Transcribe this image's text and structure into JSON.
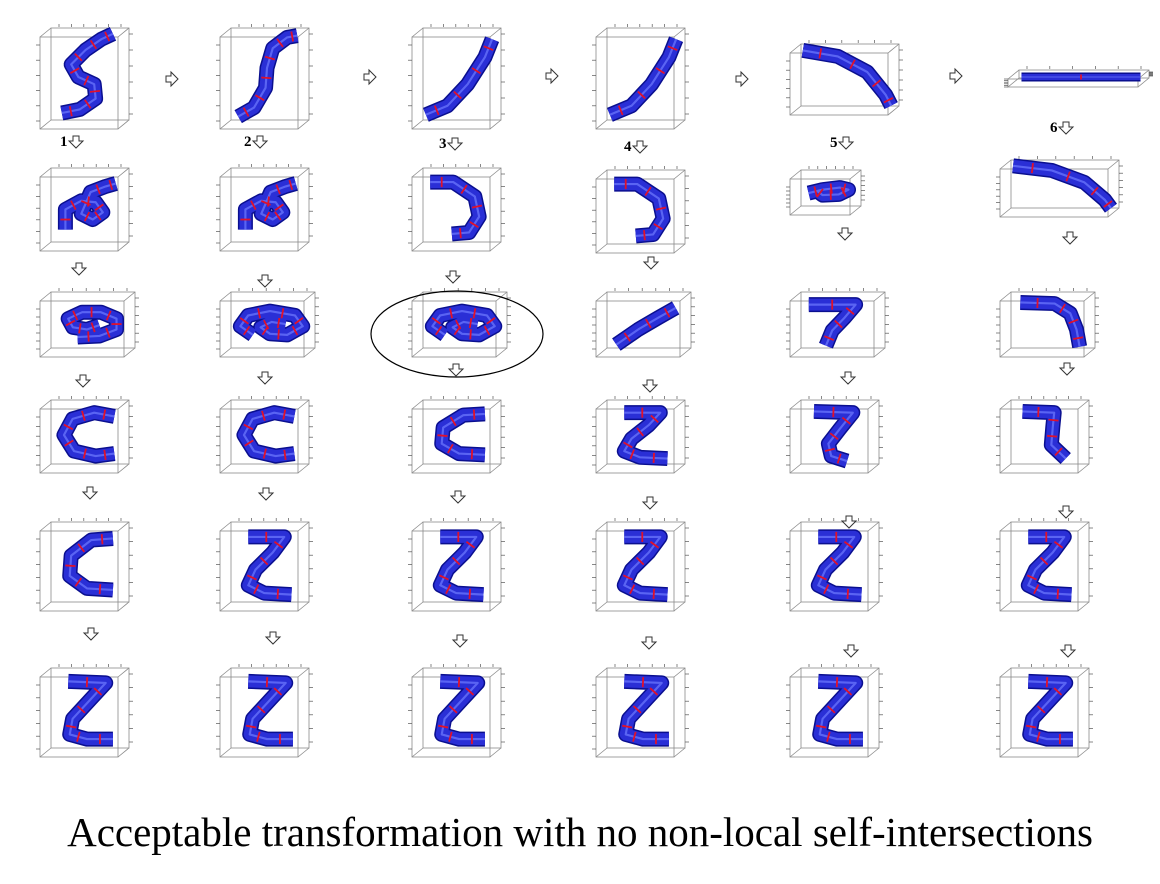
{
  "figure": {
    "caption": "Acceptable transformation with no non-local self-intersections",
    "column_labels": [
      "1",
      "2",
      "3",
      "4",
      "5",
      "6"
    ],
    "colors": {
      "ribbon_fill": "#2a2fd6",
      "ribbon_dark": "#0a0f8f",
      "ribbon_light": "#6f7bff",
      "marker": "#e0112b",
      "box": "#8a8a8a",
      "arrow_stroke": "#333333"
    },
    "highlighted_panel": "column 3, third panel (ellipse)"
  }
}
